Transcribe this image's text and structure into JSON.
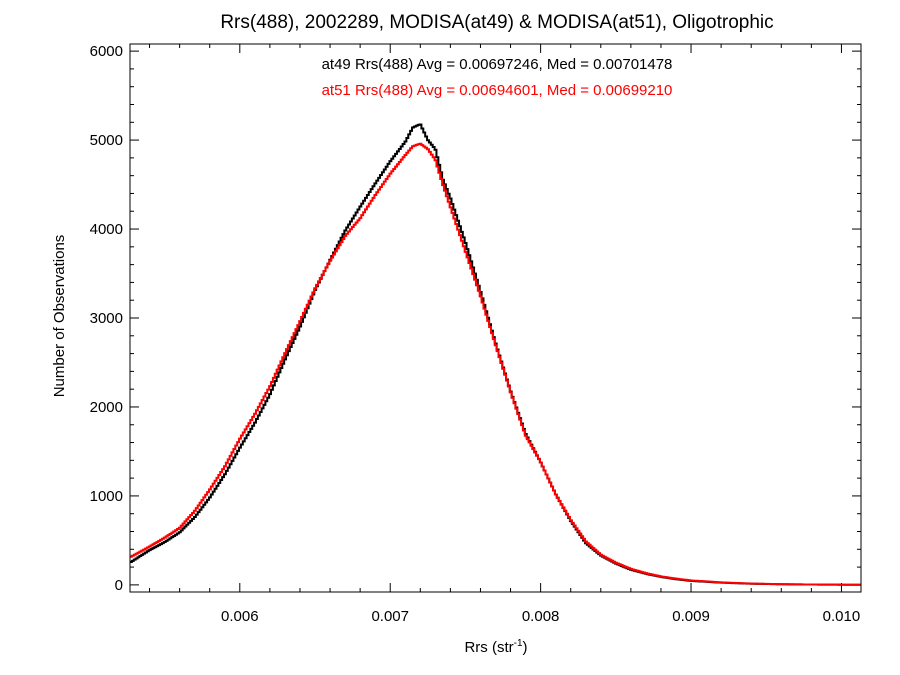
{
  "chart_data": {
    "type": "line",
    "title": "Rrs(488), 2002289, MODISA(at49) & MODISA(at51), Oligotrophic",
    "xlabel_base": "Rrs (str",
    "xlabel_exp": "-1",
    "xlabel_close": ")",
    "ylabel": "Number of Observations",
    "xlim": [
      0.00527,
      0.01013
    ],
    "ylim": [
      -80,
      6080
    ],
    "x_ticks": [
      {
        "value": 0.006,
        "label": "0.006"
      },
      {
        "value": 0.007,
        "label": "0.007"
      },
      {
        "value": 0.008,
        "label": "0.008"
      },
      {
        "value": 0.009,
        "label": "0.009"
      },
      {
        "value": 0.01,
        "label": "0.010"
      }
    ],
    "y_ticks": [
      {
        "value": 0,
        "label": "0"
      },
      {
        "value": 1000,
        "label": "1000"
      },
      {
        "value": 2000,
        "label": "2000"
      },
      {
        "value": 3000,
        "label": "3000"
      },
      {
        "value": 4000,
        "label": "4000"
      },
      {
        "value": 5000,
        "label": "5000"
      },
      {
        "value": 6000,
        "label": "6000"
      }
    ],
    "x_minor_step": 0.0002,
    "y_minor_step": 200,
    "grid": false,
    "series": [
      {
        "name": "at49",
        "color": "#000000",
        "stat_label": "at49 Rrs(488) Avg = 0.00697246, Med = 0.00701478",
        "points": [
          [
            0.00527,
            250
          ],
          [
            0.0054,
            390
          ],
          [
            0.0055,
            480
          ],
          [
            0.0056,
            590
          ],
          [
            0.0057,
            760
          ],
          [
            0.0058,
            980
          ],
          [
            0.0059,
            1240
          ],
          [
            0.006,
            1540
          ],
          [
            0.0061,
            1820
          ],
          [
            0.0062,
            2140
          ],
          [
            0.0063,
            2530
          ],
          [
            0.0064,
            2900
          ],
          [
            0.0065,
            3310
          ],
          [
            0.0066,
            3650
          ],
          [
            0.0067,
            3980
          ],
          [
            0.0068,
            4250
          ],
          [
            0.0069,
            4510
          ],
          [
            0.007,
            4760
          ],
          [
            0.0071,
            4980
          ],
          [
            0.00715,
            5140
          ],
          [
            0.0072,
            5180
          ],
          [
            0.00725,
            5000
          ],
          [
            0.0073,
            4900
          ],
          [
            0.00735,
            4560
          ],
          [
            0.0074,
            4350
          ],
          [
            0.0075,
            3850
          ],
          [
            0.0076,
            3300
          ],
          [
            0.0077,
            2720
          ],
          [
            0.0078,
            2180
          ],
          [
            0.0079,
            1700
          ],
          [
            0.008,
            1380
          ],
          [
            0.0081,
            1020
          ],
          [
            0.0082,
            720
          ],
          [
            0.0083,
            470
          ],
          [
            0.0084,
            330
          ],
          [
            0.0085,
            240
          ],
          [
            0.0086,
            170
          ],
          [
            0.0087,
            125
          ],
          [
            0.0088,
            90
          ],
          [
            0.0089,
            64
          ],
          [
            0.009,
            45
          ],
          [
            0.0092,
            25
          ],
          [
            0.0094,
            13
          ],
          [
            0.0096,
            7
          ],
          [
            0.0098,
            4
          ],
          [
            0.01,
            2
          ],
          [
            0.01013,
            1
          ]
        ]
      },
      {
        "name": "at51",
        "color": "#ff0000",
        "stat_label": "at51 Rrs(488) Avg = 0.00694601, Med = 0.00699210",
        "points": [
          [
            0.00527,
            310
          ],
          [
            0.0054,
            430
          ],
          [
            0.0055,
            530
          ],
          [
            0.0056,
            640
          ],
          [
            0.0057,
            830
          ],
          [
            0.0058,
            1070
          ],
          [
            0.0059,
            1330
          ],
          [
            0.006,
            1640
          ],
          [
            0.0061,
            1920
          ],
          [
            0.0062,
            2230
          ],
          [
            0.0063,
            2600
          ],
          [
            0.0064,
            2960
          ],
          [
            0.0065,
            3330
          ],
          [
            0.0066,
            3640
          ],
          [
            0.0067,
            3920
          ],
          [
            0.0068,
            4120
          ],
          [
            0.0069,
            4380
          ],
          [
            0.007,
            4620
          ],
          [
            0.0071,
            4830
          ],
          [
            0.00715,
            4930
          ],
          [
            0.0072,
            4960
          ],
          [
            0.00725,
            4900
          ],
          [
            0.0073,
            4780
          ],
          [
            0.00735,
            4500
          ],
          [
            0.0074,
            4250
          ],
          [
            0.0075,
            3750
          ],
          [
            0.0076,
            3250
          ],
          [
            0.0077,
            2700
          ],
          [
            0.0078,
            2170
          ],
          [
            0.0079,
            1680
          ],
          [
            0.008,
            1380
          ],
          [
            0.0081,
            1020
          ],
          [
            0.0082,
            730
          ],
          [
            0.0083,
            490
          ],
          [
            0.0084,
            340
          ],
          [
            0.0085,
            250
          ],
          [
            0.0086,
            180
          ],
          [
            0.0087,
            132
          ],
          [
            0.0088,
            95
          ],
          [
            0.0089,
            70
          ],
          [
            0.009,
            50
          ],
          [
            0.0092,
            28
          ],
          [
            0.0094,
            15
          ],
          [
            0.0096,
            8
          ],
          [
            0.0098,
            4
          ],
          [
            0.01,
            2
          ],
          [
            0.01013,
            1
          ]
        ]
      }
    ]
  }
}
